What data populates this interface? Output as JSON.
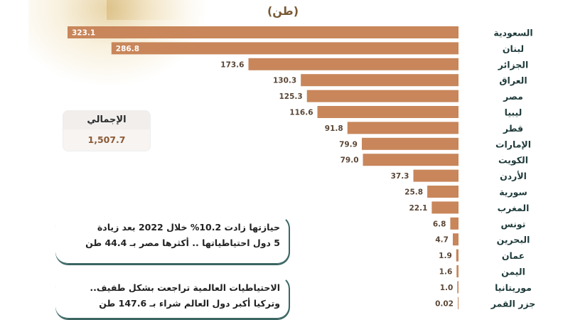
{
  "chart_data": {
    "type": "bar",
    "orientation": "horizontal",
    "unit_label": "(طن)",
    "categories": [
      "السعودية",
      "لبنان",
      "الجزائر",
      "العراق",
      "مصر",
      "ليبيا",
      "قطر",
      "الإمارات",
      "الكويت",
      "الأردن",
      "سورية",
      "المغرب",
      "تونس",
      "البحرين",
      "عمان",
      "اليمن",
      "موريتانيا",
      "جزر القمر"
    ],
    "values": [
      323.1,
      286.8,
      173.6,
      130.3,
      125.3,
      116.6,
      91.8,
      79.9,
      79.0,
      37.3,
      25.8,
      22.1,
      6.8,
      4.7,
      1.9,
      1.6,
      1.0,
      0.02
    ],
    "value_labels": [
      "323.1",
      "286.8",
      "173.6",
      "130.3",
      "125.3",
      "116.6",
      "91.8",
      "79.9",
      "79.0",
      "37.3",
      "25.8",
      "22.1",
      "6.8",
      "4.7",
      "1.9",
      "1.6",
      "1.0",
      "0.02"
    ],
    "bar_color": "#c8865a",
    "xlim": [
      0,
      323.1
    ]
  },
  "total": {
    "label": "الإجمالي",
    "value": "1,507.7"
  },
  "notes": [
    {
      "lines": [
        "حيازتها زادت 10.2% خلال 2022 بعد زيادة",
        "5 دول احتياطياتها .. أكثرها مصر بـ 44.4 طن"
      ]
    },
    {
      "lines": [
        "الاحتياطيات العالمية تراجعت بشكل طفيف..",
        "وتركيا أكبر دول العالم شراء بـ 147.6 طن"
      ]
    }
  ],
  "colors": {
    "accent": "#3b6663",
    "bar": "#c8865a",
    "value_text": "#5b4636"
  }
}
